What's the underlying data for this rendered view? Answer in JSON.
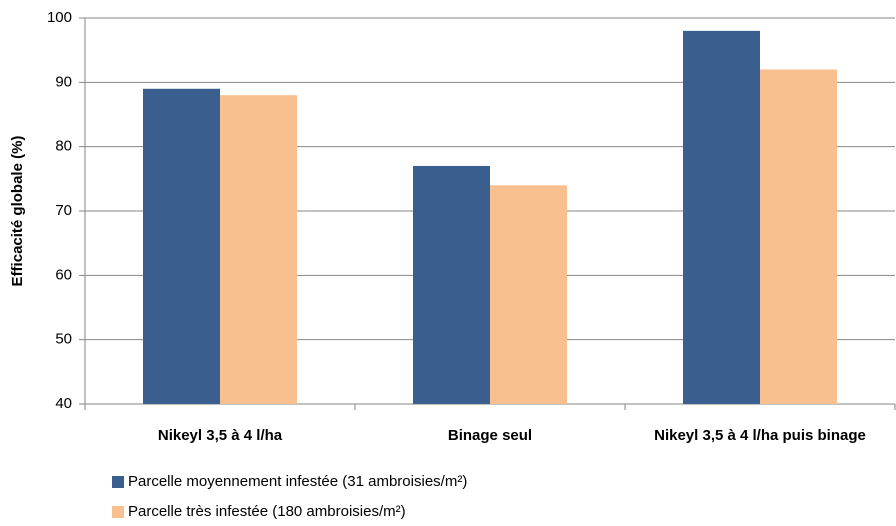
{
  "chart_data": {
    "type": "bar",
    "y_label": "Efficacité globale (%)",
    "categories": [
      "Nikeyl 3,5 à 4 l/ha",
      "Binage seul",
      "Nikeyl 3,5 à 4 l/ha puis binage"
    ],
    "series": [
      {
        "name": "Parcelle moyennement infestée (31 ambroisies/m²)",
        "color": "#3a5f8f",
        "values": [
          89,
          77,
          98
        ]
      },
      {
        "name": "Parcelle très infestée (180 ambroisies/m²)",
        "color": "#f9c08f",
        "values": [
          88,
          74,
          92
        ]
      }
    ],
    "ylim": [
      40,
      100
    ],
    "yticks": [
      40,
      50,
      60,
      70,
      80,
      90,
      100
    ],
    "grid": true,
    "legend": "bottom-left"
  }
}
